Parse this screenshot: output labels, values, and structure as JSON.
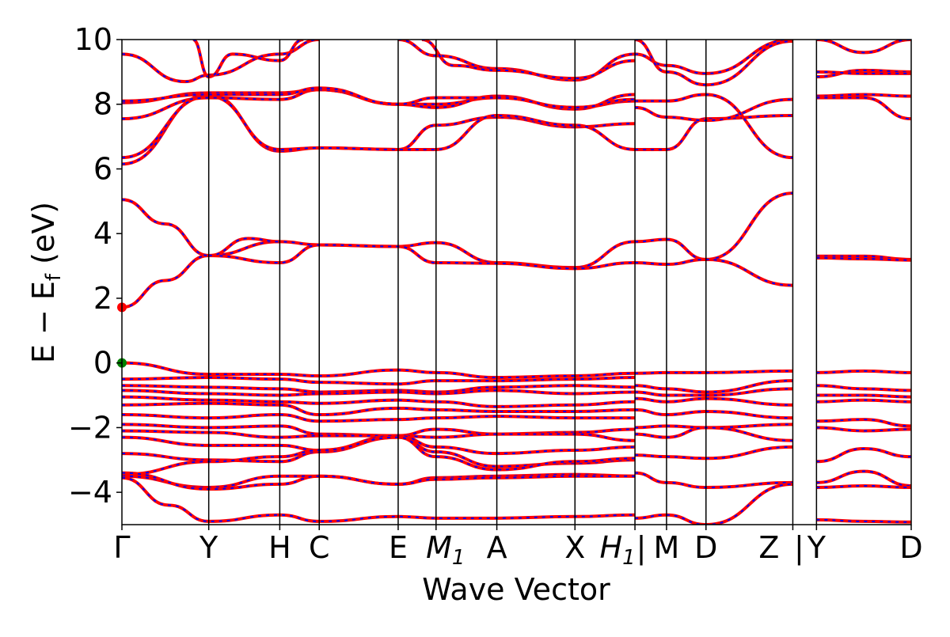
{
  "chart_data": {
    "type": "line",
    "xlabel": "Wave Vector",
    "ylabel_main": "E − E",
    "ylabel_sub": "f",
    "ylabel_unit": " (eV)",
    "ylim": [
      -5,
      10
    ],
    "yticks": [
      -4,
      -2,
      0,
      2,
      4,
      6,
      8,
      10
    ],
    "ytick_labels": [
      "−4",
      "−2",
      "0",
      "2",
      "4",
      "6",
      "8",
      "10"
    ],
    "x_range": [
      0,
      10
    ],
    "kpoints": [
      {
        "label": "Γ",
        "x": 0.0
      },
      {
        "label": "Y",
        "x": 1.1
      },
      {
        "label": "H",
        "x": 2.0
      },
      {
        "label": "C",
        "x": 2.5
      },
      {
        "label": "E",
        "x": 3.5
      },
      {
        "label": "M",
        "sub": "1",
        "x": 3.98
      },
      {
        "label": "A",
        "x": 4.75
      },
      {
        "label": "X",
        "x": 5.74
      },
      {
        "label": "H",
        "sub": "1",
        "x": 6.5
      },
      {
        "label": "|",
        "x": 6.5
      },
      {
        "label": "M",
        "x": 6.9
      },
      {
        "label": "D",
        "x": 7.4
      },
      {
        "label": "Z",
        "x": 8.5
      },
      {
        "label": "|",
        "x": 8.5
      },
      {
        "label": "Y",
        "x": 8.8
      },
      {
        "label": "D",
        "x": 10.0
      }
    ],
    "markers": [
      {
        "name": "CBM",
        "x": 0.0,
        "y": 1.72,
        "color": "#ff0000"
      },
      {
        "name": "VBM",
        "x": 0.0,
        "y": 0.0,
        "color": "#008000"
      }
    ],
    "colors": {
      "line_main": "#ff0000",
      "line_overlay": "#0000ff",
      "axis": "#000000",
      "background": "#ffffff"
    },
    "series": [
      {
        "x": [
          0,
          0.55,
          1.1,
          2.0,
          2.5,
          3.5,
          3.98,
          4.75,
          5.74,
          6.5
        ],
        "y": [
          1.72,
          2.55,
          3.32,
          3.75,
          3.65,
          3.6,
          3.72,
          3.1,
          2.95,
          3.75
        ]
      },
      {
        "x": [
          0,
          0.55,
          1.1,
          2.0,
          2.5,
          3.5,
          3.98,
          4.75,
          5.74,
          6.5
        ],
        "y": [
          5.05,
          4.3,
          3.32,
          3.1,
          3.65,
          3.6,
          3.1,
          3.08,
          2.92,
          3.1
        ]
      },
      {
        "x": [
          1.1,
          1.6,
          2.0
        ],
        "y": [
          3.32,
          3.85,
          3.75
        ]
      },
      {
        "x": [
          6.5,
          6.9,
          7.4,
          8.5
        ],
        "y": [
          3.75,
          3.82,
          3.2,
          5.25
        ]
      },
      {
        "x": [
          6.5,
          6.9,
          7.4,
          8.5
        ],
        "y": [
          3.1,
          3.05,
          3.2,
          2.4
        ]
      },
      {
        "x": [
          8.8,
          9.4,
          10.0
        ],
        "y": [
          3.3,
          3.3,
          3.2
        ]
      },
      {
        "x": [
          8.8,
          9.4,
          10.0
        ],
        "y": [
          3.25,
          3.22,
          3.18
        ]
      },
      {
        "x": [
          0,
          1.1,
          2.0,
          2.5,
          3.5,
          3.98,
          4.75,
          5.74,
          6.5
        ],
        "y": [
          0.0,
          -0.35,
          -0.35,
          -0.4,
          -0.22,
          -0.3,
          -0.45,
          -0.4,
          -0.32
        ]
      },
      {
        "x": [
          0,
          1.1,
          2.0,
          2.5,
          3.5,
          3.98,
          4.75,
          5.74,
          6.5
        ],
        "y": [
          -0.5,
          -0.45,
          -0.5,
          -0.6,
          -0.65,
          -0.55,
          -0.55,
          -0.5,
          -0.45
        ]
      },
      {
        "x": [
          0,
          1.1,
          2.0,
          2.5,
          3.5,
          3.98,
          4.75,
          5.74,
          6.5
        ],
        "y": [
          -0.7,
          -0.75,
          -0.8,
          -0.9,
          -0.85,
          -0.9,
          -0.75,
          -0.7,
          -0.75
        ]
      },
      {
        "x": [
          0,
          1.1,
          2.0,
          2.5,
          3.5,
          3.98,
          4.75,
          5.74,
          6.5
        ],
        "y": [
          -0.85,
          -0.95,
          -1.0,
          -0.95,
          -0.9,
          -0.95,
          -0.85,
          -0.95,
          -0.9
        ]
      },
      {
        "x": [
          0,
          1.1,
          2.0,
          2.5,
          3.5,
          3.98,
          4.75,
          5.74,
          6.5
        ],
        "y": [
          -1.05,
          -1.15,
          -1.2,
          -1.25,
          -1.15,
          -1.2,
          -1.35,
          -1.3,
          -1.2
        ]
      },
      {
        "x": [
          0,
          1.1,
          2.0,
          2.5,
          3.5,
          3.98,
          4.75,
          5.74,
          6.5
        ],
        "y": [
          -1.3,
          -1.25,
          -1.3,
          -1.6,
          -1.4,
          -1.45,
          -1.5,
          -1.5,
          -1.45
        ]
      },
      {
        "x": [
          0,
          1.1,
          2.0,
          2.5,
          3.5,
          3.98,
          4.75,
          5.74,
          6.5
        ],
        "y": [
          -1.6,
          -1.7,
          -1.6,
          -1.8,
          -1.75,
          -1.7,
          -1.65,
          -1.7,
          -1.7
        ]
      },
      {
        "x": [
          0,
          1.1,
          2.0,
          2.5,
          3.5,
          3.98,
          4.75,
          5.74,
          6.5
        ],
        "y": [
          -1.9,
          -2.0,
          -1.95,
          -2.2,
          -2.25,
          -2.05,
          -2.2,
          -2.15,
          -2.05
        ]
      },
      {
        "x": [
          0,
          1.1,
          2.0,
          2.5,
          3.5,
          3.98,
          4.75,
          5.74,
          6.5
        ],
        "y": [
          -2.1,
          -2.15,
          -2.3,
          -2.25,
          -2.25,
          -2.3,
          -2.2,
          -2.2,
          -2.4
        ]
      },
      {
        "x": [
          0,
          1.1,
          2.0,
          2.5,
          3.5,
          3.98,
          4.75,
          5.74,
          6.5
        ],
        "y": [
          -2.3,
          -2.55,
          -2.55,
          -2.7,
          -2.25,
          -2.6,
          -2.8,
          -2.7,
          -2.6
        ]
      },
      {
        "x": [
          0,
          1.1,
          2.0,
          2.5,
          3.5,
          3.98,
          4.75,
          5.74,
          6.5
        ],
        "y": [
          -2.8,
          -3.0,
          -3.05,
          -2.75,
          -2.3,
          -2.75,
          -3.2,
          -3.1,
          -3.0
        ]
      },
      {
        "x": [
          0,
          1.1,
          2.0,
          2.5,
          3.5,
          3.98,
          4.75,
          5.74,
          6.5
        ],
        "y": [
          -3.45,
          -3.05,
          -2.9,
          -2.7,
          -2.3,
          -2.9,
          -3.3,
          -3.05,
          -2.95
        ]
      },
      {
        "x": [
          0,
          1.1,
          2.0,
          2.5,
          3.5,
          3.98,
          4.75,
          5.74,
          6.5
        ],
        "y": [
          -3.5,
          -3.85,
          -3.5,
          -3.5,
          -3.75,
          -3.55,
          -3.5,
          -3.45,
          -3.5
        ]
      },
      {
        "x": [
          0,
          1.1,
          2.0,
          2.5,
          3.5,
          3.98,
          4.75,
          5.74,
          6.5
        ],
        "y": [
          -3.4,
          -3.9,
          -3.75,
          -3.5,
          -3.75,
          -3.6,
          -3.55,
          -3.5,
          -3.5
        ]
      },
      {
        "x": [
          0,
          0.6,
          1.1,
          2.0,
          2.5,
          3.5,
          3.98,
          4.75,
          5.74,
          6.5
        ],
        "y": [
          -3.55,
          -4.4,
          -4.9,
          -4.7,
          -4.9,
          -4.75,
          -4.8,
          -4.8,
          -4.75,
          -4.7
        ]
      },
      {
        "x": [
          0,
          1.1,
          2.0,
          2.5,
          3.5,
          3.98,
          4.75,
          5.74,
          6.5
        ],
        "y": [
          6.15,
          8.3,
          6.55,
          6.65,
          6.6,
          7.35,
          7.6,
          7.3,
          7.4
        ]
      },
      {
        "x": [
          0,
          1.1,
          2.0,
          2.5,
          3.5,
          3.98,
          4.75,
          5.74,
          6.5
        ],
        "y": [
          6.35,
          8.25,
          6.6,
          6.65,
          6.6,
          6.6,
          7.65,
          7.35,
          6.6
        ]
      },
      {
        "x": [
          0,
          1.1,
          2.0,
          2.5,
          3.5,
          3.98,
          4.75,
          5.74,
          6.5
        ],
        "y": [
          7.55,
          8.2,
          8.15,
          8.45,
          8.0,
          8.0,
          8.2,
          7.9,
          8.1
        ]
      },
      {
        "x": [
          0,
          1.1,
          2.0,
          2.5,
          3.5,
          3.98,
          4.75,
          5.74,
          6.5
        ],
        "y": [
          8.05,
          8.35,
          8.35,
          8.45,
          8.0,
          7.9,
          8.25,
          7.85,
          8.3
        ]
      },
      {
        "x": [
          0,
          1.1,
          2.0,
          2.5,
          3.5,
          3.98,
          4.75,
          5.74,
          6.5
        ],
        "y": [
          8.1,
          8.3,
          8.3,
          8.5,
          8.0,
          8.2,
          8.2,
          7.9,
          8.15
        ]
      },
      {
        "x": [
          0,
          0.8,
          1.1,
          2.0,
          2.5
        ],
        "y": [
          9.55,
          8.7,
          8.9,
          9.55,
          10.0
        ]
      },
      {
        "x": [
          0.9,
          1.1,
          1.4,
          2.0,
          2.3
        ],
        "y": [
          10.0,
          8.85,
          9.55,
          9.35,
          10.0
        ]
      },
      {
        "x": [
          3.5,
          3.98,
          4.75,
          5.74,
          6.5
        ],
        "y": [
          10.0,
          9.5,
          9.1,
          8.75,
          9.55
        ]
      },
      {
        "x": [
          3.8,
          4.2,
          4.75,
          5.74,
          6.5
        ],
        "y": [
          10.0,
          9.2,
          9.05,
          8.8,
          9.35
        ]
      },
      {
        "x": [
          6.5,
          6.9,
          7.4,
          8.5
        ],
        "y": [
          -0.32,
          -0.3,
          -0.3,
          -0.25
        ]
      },
      {
        "x": [
          6.5,
          6.9,
          7.4,
          8.5
        ],
        "y": [
          -0.7,
          -0.8,
          -0.9,
          -0.55
        ]
      },
      {
        "x": [
          6.5,
          6.9,
          7.4,
          8.5
        ],
        "y": [
          -0.9,
          -1.0,
          -1.0,
          -0.8
        ]
      },
      {
        "x": [
          6.5,
          6.9,
          7.4,
          8.5
        ],
        "y": [
          -1.1,
          -1.2,
          -1.1,
          -1.3
        ]
      },
      {
        "x": [
          6.5,
          6.9,
          7.4,
          8.5
        ],
        "y": [
          -1.45,
          -1.6,
          -1.5,
          -1.7
        ]
      },
      {
        "x": [
          6.5,
          6.9,
          7.4,
          8.5
        ],
        "y": [
          -2.0,
          -1.95,
          -2.0,
          -1.9
        ]
      },
      {
        "x": [
          6.5,
          6.9,
          7.4,
          8.5
        ],
        "y": [
          -2.2,
          -2.3,
          -2.0,
          -2.4
        ]
      },
      {
        "x": [
          6.5,
          6.9,
          7.4,
          8.5
        ],
        "y": [
          -2.85,
          -2.9,
          -2.95,
          -2.6
        ]
      },
      {
        "x": [
          6.5,
          6.9,
          7.4,
          8.5
        ],
        "y": [
          -3.4,
          -3.7,
          -3.85,
          -3.7
        ]
      },
      {
        "x": [
          6.5,
          6.9,
          7.4,
          8.5
        ],
        "y": [
          -4.8,
          -4.7,
          -5.0,
          -3.75
        ]
      },
      {
        "x": [
          6.5,
          6.9,
          7.4,
          8.5
        ],
        "y": [
          6.6,
          6.6,
          7.55,
          7.65
        ]
      },
      {
        "x": [
          6.5,
          6.9,
          7.4,
          8.5
        ],
        "y": [
          7.9,
          7.6,
          7.5,
          8.15
        ]
      },
      {
        "x": [
          6.5,
          6.9,
          7.4,
          8.5
        ],
        "y": [
          8.1,
          8.1,
          8.3,
          6.35
        ]
      },
      {
        "x": [
          6.5,
          6.9,
          7.4,
          8.5
        ],
        "y": [
          9.55,
          9.2,
          8.95,
          10.0
        ]
      },
      {
        "x": [
          6.5,
          6.9,
          7.4,
          8.5
        ],
        "y": [
          10.0,
          9.0,
          8.6,
          9.95
        ]
      },
      {
        "x": [
          8.8,
          9.4,
          10.0
        ],
        "y": [
          -0.3,
          -0.25,
          -0.3
        ]
      },
      {
        "x": [
          8.8,
          9.4,
          10.0
        ],
        "y": [
          -0.7,
          -0.8,
          -0.85
        ]
      },
      {
        "x": [
          8.8,
          9.4,
          10.0
        ],
        "y": [
          -1.0,
          -1.0,
          -1.05
        ]
      },
      {
        "x": [
          8.8,
          9.4,
          10.0
        ],
        "y": [
          -1.2,
          -1.15,
          -1.2
        ]
      },
      {
        "x": [
          8.8,
          9.4,
          10.0
        ],
        "y": [
          -1.8,
          -1.75,
          -1.95
        ]
      },
      {
        "x": [
          8.8,
          9.4,
          10.0
        ],
        "y": [
          -2.0,
          -2.1,
          -2.05
        ]
      },
      {
        "x": [
          8.8,
          9.4,
          10.0
        ],
        "y": [
          -3.05,
          -2.65,
          -2.9
        ]
      },
      {
        "x": [
          8.8,
          9.4,
          10.0
        ],
        "y": [
          -3.7,
          -3.35,
          -3.8
        ]
      },
      {
        "x": [
          8.8,
          9.4,
          10.0
        ],
        "y": [
          -3.85,
          -3.8,
          -3.85
        ]
      },
      {
        "x": [
          8.8,
          9.4,
          10.0
        ],
        "y": [
          -4.85,
          -4.9,
          -4.92
        ]
      },
      {
        "x": [
          8.8,
          9.4,
          10.0
        ],
        "y": [
          8.25,
          8.3,
          8.25
        ]
      },
      {
        "x": [
          8.8,
          9.4,
          10.0
        ],
        "y": [
          8.2,
          8.2,
          7.55
        ]
      },
      {
        "x": [
          8.8,
          9.4,
          10.0
        ],
        "y": [
          8.85,
          9.05,
          9.0
        ]
      },
      {
        "x": [
          8.8,
          9.4,
          10.0
        ],
        "y": [
          9.0,
          8.95,
          8.95
        ]
      },
      {
        "x": [
          8.8,
          9.4,
          10.0
        ],
        "y": [
          10.0,
          9.6,
          10.0
        ]
      }
    ]
  }
}
